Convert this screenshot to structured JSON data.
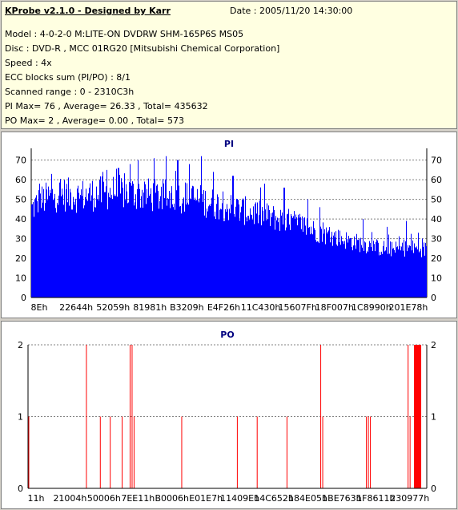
{
  "info": {
    "title": "KProbe v2.1.0 - Designed by Karr",
    "date": "Date : 2005/11/20 14:30:00",
    "lines": [
      "Model : 4-0-2-0 M:LITE-ON DVDRW SHM-165P6S MS05",
      "Disc : DVD-R , MCC 01RG20   [Mitsubishi Chemical Corporation]",
      "Speed : 4x",
      "ECC blocks sum (PI/PO) : 8/1",
      "Scanned range : 0 - 2310C3h",
      "PI Max= 76 , Average= 26.33 , Total= 435632",
      "PO Max= 2 , Average= 0.00 , Total= 573"
    ]
  },
  "colors": {
    "pi": "#0000ff",
    "po": "#ff0000",
    "grid": "#808080",
    "title": "#000080"
  },
  "chart_data": [
    {
      "type": "area",
      "title": "PI",
      "ylim": [
        0,
        76
      ],
      "yticks": [
        0,
        10,
        20,
        30,
        40,
        50,
        60,
        70
      ],
      "xtick_labels": [
        "8Eh",
        "22644h",
        "52059h",
        "81981h",
        "B3209h",
        "E4F26h",
        "11C430h",
        "15607Fh",
        "18F007h",
        "1C8990h",
        "201E78h"
      ],
      "grid": true,
      "legend": "none",
      "envelope": [
        [
          0.0,
          48
        ],
        [
          0.02,
          52
        ],
        [
          0.05,
          55
        ],
        [
          0.08,
          56
        ],
        [
          0.12,
          55
        ],
        [
          0.16,
          56
        ],
        [
          0.2,
          57
        ],
        [
          0.24,
          57
        ],
        [
          0.28,
          56
        ],
        [
          0.32,
          55
        ],
        [
          0.36,
          55
        ],
        [
          0.4,
          54
        ],
        [
          0.44,
          52
        ],
        [
          0.48,
          50
        ],
        [
          0.52,
          48
        ],
        [
          0.56,
          46
        ],
        [
          0.6,
          44
        ],
        [
          0.64,
          42
        ],
        [
          0.68,
          40
        ],
        [
          0.72,
          36
        ],
        [
          0.76,
          33
        ],
        [
          0.8,
          31
        ],
        [
          0.84,
          29
        ],
        [
          0.88,
          27
        ],
        [
          0.92,
          26
        ],
        [
          0.96,
          27
        ],
        [
          1.0,
          26
        ]
      ],
      "peaks": [
        [
          0.02,
          58
        ],
        [
          0.05,
          63
        ],
        [
          0.18,
          64
        ],
        [
          0.19,
          65
        ],
        [
          0.22,
          66
        ],
        [
          0.25,
          68
        ],
        [
          0.27,
          70
        ],
        [
          0.31,
          71
        ],
        [
          0.34,
          72
        ],
        [
          0.37,
          70
        ],
        [
          0.4,
          68
        ],
        [
          0.43,
          72
        ],
        [
          0.46,
          64
        ],
        [
          0.51,
          62
        ],
        [
          0.59,
          58
        ],
        [
          0.64,
          56
        ],
        [
          0.7,
          50
        ],
        [
          0.73,
          46
        ],
        [
          0.84,
          40
        ],
        [
          0.9,
          36
        ],
        [
          0.95,
          39
        ],
        [
          0.98,
          33
        ]
      ],
      "max": 76,
      "average": 26.33,
      "total": 435632
    },
    {
      "type": "bar",
      "title": "PO",
      "ylim": [
        0,
        2
      ],
      "yticks": [
        0,
        1,
        2
      ],
      "xtick_labels": [
        "11h",
        "21004h",
        "50006h",
        "7EE11h",
        "B0006h",
        "E01E7h",
        "11409Eh",
        "14C652h",
        "184E05h",
        "1BE763h",
        "1F8611h",
        "230977h"
      ],
      "grid": true,
      "legend": "none",
      "events": [
        [
          0.0,
          1
        ],
        [
          0.145,
          2
        ],
        [
          0.18,
          1
        ],
        [
          0.205,
          1
        ],
        [
          0.235,
          1
        ],
        [
          0.255,
          2
        ],
        [
          0.26,
          2
        ],
        [
          0.265,
          1
        ],
        [
          0.385,
          1
        ],
        [
          0.525,
          1
        ],
        [
          0.575,
          1
        ],
        [
          0.65,
          1
        ],
        [
          0.735,
          2
        ],
        [
          0.74,
          1
        ],
        [
          0.85,
          1
        ],
        [
          0.855,
          1
        ],
        [
          0.86,
          1
        ],
        [
          0.955,
          2
        ],
        [
          0.96,
          1
        ]
      ],
      "dense_range": [
        0.968,
        0.986,
        2
      ],
      "max": 2,
      "average": 0.0,
      "total": 573
    }
  ]
}
